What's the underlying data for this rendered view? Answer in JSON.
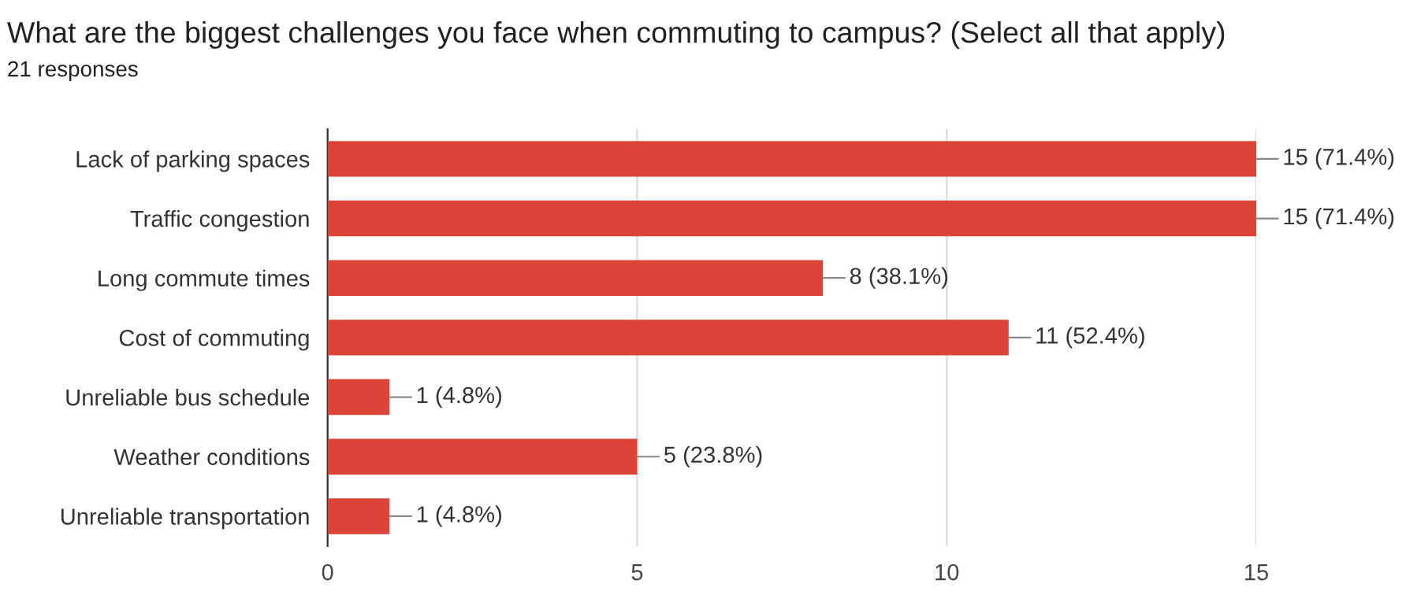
{
  "chart_data": {
    "type": "bar",
    "orientation": "horizontal",
    "title": "What are the biggest challenges you face when commuting to campus? (Select all that apply)",
    "subtitle": "21 responses",
    "categories": [
      "Lack of parking spaces",
      "Traffic congestion",
      "Long commute times",
      "Cost of commuting",
      "Unreliable bus schedule",
      "Weather conditions",
      "Unreliable transportation"
    ],
    "values": [
      15,
      15,
      8,
      11,
      1,
      5,
      1
    ],
    "value_labels": [
      "15 (71.4%)",
      "15 (71.4%)",
      "8 (38.1%)",
      "11 (52.4%)",
      "1 (4.8%)",
      "5 (23.8%)",
      "1 (4.8%)"
    ],
    "color": "#db4437",
    "xlim": [
      0,
      15
    ],
    "xticks": [
      0,
      5,
      10,
      15
    ],
    "grid": "x",
    "legend": false
  }
}
